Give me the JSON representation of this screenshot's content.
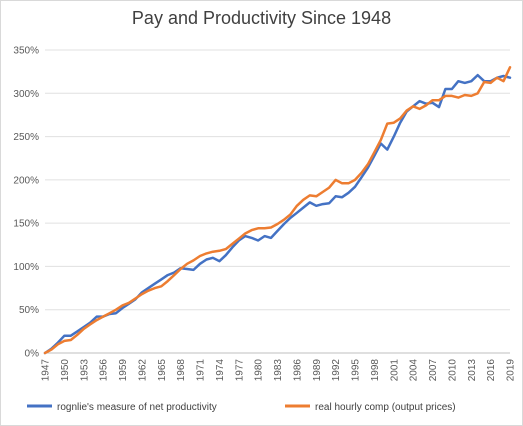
{
  "chart_data": {
    "type": "line",
    "title": "Pay and Productivity Since 1948",
    "xlabel": "",
    "ylabel": "",
    "ylim": [
      0,
      350
    ],
    "y_ticks": [
      "0%",
      "50%",
      "100%",
      "150%",
      "200%",
      "250%",
      "300%",
      "350%"
    ],
    "x_ticks": [
      "1947",
      "1950",
      "1953",
      "1956",
      "1959",
      "1962",
      "1965",
      "1968",
      "1971",
      "1974",
      "1977",
      "1980",
      "1983",
      "1986",
      "1989",
      "1992",
      "1995",
      "1998",
      "2001",
      "2004",
      "2007",
      "2010",
      "2013",
      "2016",
      "2019"
    ],
    "grid": true,
    "legend_position": "bottom",
    "x": [
      1947,
      1948,
      1949,
      1950,
      1951,
      1952,
      1953,
      1954,
      1955,
      1956,
      1957,
      1958,
      1959,
      1960,
      1961,
      1962,
      1963,
      1964,
      1965,
      1966,
      1967,
      1968,
      1969,
      1970,
      1971,
      1972,
      1973,
      1974,
      1975,
      1976,
      1977,
      1978,
      1979,
      1980,
      1981,
      1982,
      1983,
      1984,
      1985,
      1986,
      1987,
      1988,
      1989,
      1990,
      1991,
      1992,
      1993,
      1994,
      1995,
      1996,
      1997,
      1998,
      1999,
      2000,
      2001,
      2002,
      2003,
      2004,
      2005,
      2006,
      2007,
      2008,
      2009,
      2010,
      2011,
      2012,
      2013,
      2014,
      2015,
      2016,
      2017,
      2018,
      2019
    ],
    "series": [
      {
        "name": "rognlie's measure of net productivity",
        "color": "#4472c4",
        "values": [
          0,
          5,
          12,
          20,
          20,
          25,
          30,
          35,
          42,
          42,
          45,
          46,
          52,
          57,
          62,
          70,
          75,
          80,
          85,
          90,
          93,
          98,
          97,
          96,
          103,
          108,
          110,
          106,
          113,
          122,
          130,
          135,
          133,
          130,
          135,
          133,
          141,
          149,
          156,
          162,
          168,
          174,
          170,
          172,
          173,
          181,
          180,
          185,
          192,
          203,
          214,
          228,
          242,
          235,
          250,
          266,
          279,
          285,
          291,
          288,
          289,
          284,
          305,
          305,
          314,
          312,
          314,
          321,
          314,
          314,
          318,
          320,
          318
        ]
      },
      {
        "name": "real hourly comp (output prices)",
        "color": "#ed7d31",
        "values": [
          0,
          4,
          10,
          14,
          15,
          21,
          28,
          33,
          38,
          42,
          46,
          50,
          55,
          58,
          63,
          68,
          72,
          75,
          77,
          83,
          90,
          97,
          103,
          107,
          112,
          115,
          117,
          118,
          120,
          126,
          132,
          138,
          142,
          144,
          144,
          145,
          149,
          154,
          160,
          170,
          177,
          182,
          181,
          186,
          191,
          200,
          196,
          196,
          200,
          208,
          218,
          232,
          246,
          265,
          266,
          271,
          280,
          285,
          282,
          286,
          292,
          292,
          297,
          297,
          295,
          298,
          297,
          300,
          313,
          312,
          318,
          314,
          330
        ]
      }
    ]
  }
}
